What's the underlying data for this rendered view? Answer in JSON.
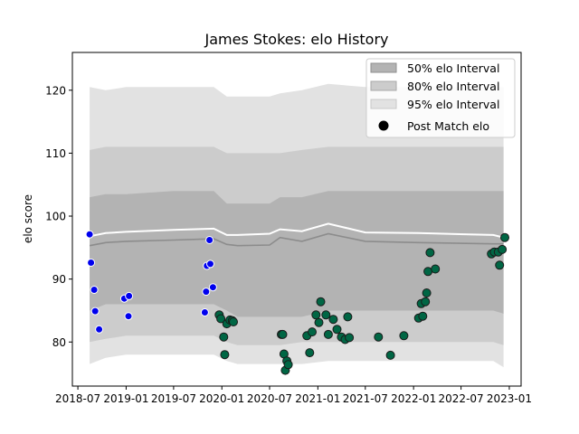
{
  "chart_data": {
    "type": "area",
    "title": "James Stokes: elo History",
    "xlabel": "",
    "ylabel": "elo score",
    "xlim": [
      "2018-06-10",
      "2023-02-15"
    ],
    "ylim": [
      73,
      126
    ],
    "x_ticks": [
      "2018-07",
      "2019-01",
      "2019-07",
      "2020-01",
      "2020-07",
      "2021-01",
      "2021-07",
      "2022-01",
      "2022-07",
      "2023-01"
    ],
    "y_ticks": [
      80,
      90,
      100,
      110,
      120
    ],
    "grid": false,
    "legend": {
      "placement": "top-right",
      "entries": [
        "50% elo Interval",
        "80% elo Interval",
        "95% elo Interval",
        "Post Match elo"
      ]
    },
    "colors": {
      "band_50": "#b3b3b3",
      "band_80": "#cccccc",
      "band_95": "#e2e2e2",
      "mean_line": "#8c8c8c",
      "median_line": "#ffffff",
      "points_early": "#0000ee",
      "points_late": "#006644"
    },
    "series": [
      {
        "name": "50% elo Interval",
        "x": [
          "2018-08-15",
          "2018-10-15",
          "2019-01-01",
          "2019-07-01",
          "2019-12-01",
          "2020-01-20",
          "2020-03-01",
          "2020-07-01",
          "2020-08-10",
          "2020-11-01",
          "2021-02-10",
          "2021-07-01",
          "2022-01-20",
          "2022-11-01",
          "2022-12-10"
        ],
        "low": [
          85,
          86,
          86,
          86,
          86,
          85,
          84,
          84,
          84,
          84,
          85,
          85,
          85,
          85,
          84.5
        ],
        "high": [
          103,
          103.5,
          103.5,
          104,
          104,
          102,
          102,
          102,
          103,
          103,
          104,
          104,
          104,
          104,
          104
        ]
      },
      {
        "name": "80% elo Interval",
        "x": [
          "2018-08-15",
          "2018-10-15",
          "2019-01-01",
          "2019-07-01",
          "2019-12-01",
          "2020-01-20",
          "2020-03-01",
          "2020-07-01",
          "2020-08-10",
          "2020-11-01",
          "2021-02-10",
          "2021-07-01",
          "2022-01-20",
          "2022-11-01",
          "2022-12-10"
        ],
        "low": [
          80,
          80.5,
          81,
          81,
          81,
          80,
          79.5,
          79.5,
          79.5,
          80,
          80,
          80,
          80,
          80,
          79.5
        ],
        "high": [
          110.5,
          111,
          111,
          111,
          111,
          110,
          110,
          110,
          110,
          110.5,
          111,
          111,
          111,
          111,
          111
        ]
      },
      {
        "name": "95% elo Interval",
        "x": [
          "2018-08-15",
          "2018-10-15",
          "2019-01-01",
          "2019-07-01",
          "2019-12-01",
          "2020-01-20",
          "2020-03-01",
          "2020-07-01",
          "2020-08-10",
          "2020-11-01",
          "2021-02-10",
          "2021-07-01",
          "2022-01-20",
          "2022-11-01",
          "2022-12-10"
        ],
        "low": [
          76.5,
          77.5,
          78,
          78,
          78,
          77,
          76.5,
          76.5,
          76.5,
          76.5,
          77,
          77,
          77,
          77,
          76
        ],
        "high": [
          120.5,
          120,
          120.5,
          120.5,
          120.5,
          119,
          119,
          119,
          119.5,
          120,
          121,
          120.5,
          120.5,
          120.5,
          120.5
        ]
      },
      {
        "name": "mean",
        "x": [
          "2018-08-15",
          "2018-10-15",
          "2019-01-01",
          "2019-07-01",
          "2019-12-01",
          "2020-01-20",
          "2020-03-01",
          "2020-07-01",
          "2020-08-10",
          "2020-11-01",
          "2021-02-10",
          "2021-07-01",
          "2022-01-20",
          "2022-11-01",
          "2022-12-10"
        ],
        "values": [
          95.3,
          95.8,
          96.0,
          96.2,
          96.4,
          95.5,
          95.3,
          95.4,
          96.6,
          96.0,
          97.2,
          96.0,
          95.8,
          95.6,
          95.6
        ]
      },
      {
        "name": "median",
        "x": [
          "2018-08-15",
          "2018-10-15",
          "2019-01-01",
          "2019-07-01",
          "2019-12-01",
          "2020-01-20",
          "2020-03-01",
          "2020-07-01",
          "2020-08-10",
          "2020-11-01",
          "2021-02-10",
          "2021-07-01",
          "2022-01-20",
          "2022-11-01",
          "2022-12-10"
        ],
        "values": [
          96.8,
          97.3,
          97.5,
          97.8,
          98.0,
          97.0,
          97.0,
          97.2,
          97.9,
          97.6,
          98.8,
          97.4,
          97.3,
          97.0,
          96.6
        ]
      },
      {
        "name": "Post Match elo",
        "points_early": [
          [
            "2018-08-15",
            97.1
          ],
          [
            "2018-08-20",
            92.6
          ],
          [
            "2018-09-01",
            88.3
          ],
          [
            "2018-09-05",
            84.9
          ],
          [
            "2018-09-20",
            82.0
          ],
          [
            "2018-12-25",
            86.9
          ],
          [
            "2019-01-12",
            87.3
          ],
          [
            "2019-01-10",
            84.1
          ],
          [
            "2019-10-28",
            84.7
          ],
          [
            "2019-11-02",
            88.0
          ],
          [
            "2019-11-05",
            92.1
          ],
          [
            "2019-11-15",
            96.2
          ],
          [
            "2019-11-18",
            92.4
          ],
          [
            "2019-11-28",
            88.7
          ]
        ],
        "points_late": [
          [
            "2019-12-22",
            84.3
          ],
          [
            "2019-12-28",
            83.7
          ],
          [
            "2020-01-08",
            80.8
          ],
          [
            "2020-01-12",
            78.0
          ],
          [
            "2020-01-20",
            82.9
          ],
          [
            "2020-02-01",
            83.5
          ],
          [
            "2020-02-10",
            83.4
          ],
          [
            "2020-02-14",
            83.2
          ],
          [
            "2020-08-15",
            81.2
          ],
          [
            "2020-08-20",
            81.2
          ],
          [
            "2020-08-25",
            78.1
          ],
          [
            "2020-08-30",
            75.5
          ],
          [
            "2020-09-05",
            77.0
          ],
          [
            "2020-09-10",
            76.4
          ],
          [
            "2020-11-20",
            81.0
          ],
          [
            "2020-12-01",
            78.3
          ],
          [
            "2020-12-10",
            81.6
          ],
          [
            "2020-12-25",
            84.3
          ],
          [
            "2021-01-05",
            83.1
          ],
          [
            "2021-01-12",
            86.4
          ],
          [
            "2021-02-01",
            84.3
          ],
          [
            "2021-02-10",
            81.2
          ],
          [
            "2021-03-01",
            83.6
          ],
          [
            "2021-03-15",
            82.0
          ],
          [
            "2021-04-01",
            80.8
          ],
          [
            "2021-04-15",
            80.4
          ],
          [
            "2021-04-25",
            84.0
          ],
          [
            "2021-05-01",
            80.7
          ],
          [
            "2021-08-20",
            80.8
          ],
          [
            "2021-10-05",
            77.9
          ],
          [
            "2021-11-25",
            81.0
          ],
          [
            "2022-01-20",
            83.8
          ],
          [
            "2022-01-30",
            86.1
          ],
          [
            "2022-02-05",
            84.1
          ],
          [
            "2022-02-15",
            86.4
          ],
          [
            "2022-02-20",
            87.8
          ],
          [
            "2022-02-25",
            91.2
          ],
          [
            "2022-03-05",
            94.2
          ],
          [
            "2022-03-25",
            91.6
          ],
          [
            "2022-10-25",
            94.0
          ],
          [
            "2022-11-05",
            94.3
          ],
          [
            "2022-11-20",
            94.3
          ],
          [
            "2022-11-25",
            92.2
          ],
          [
            "2022-12-05",
            94.7
          ],
          [
            "2022-12-15",
            96.6
          ]
        ]
      }
    ]
  }
}
